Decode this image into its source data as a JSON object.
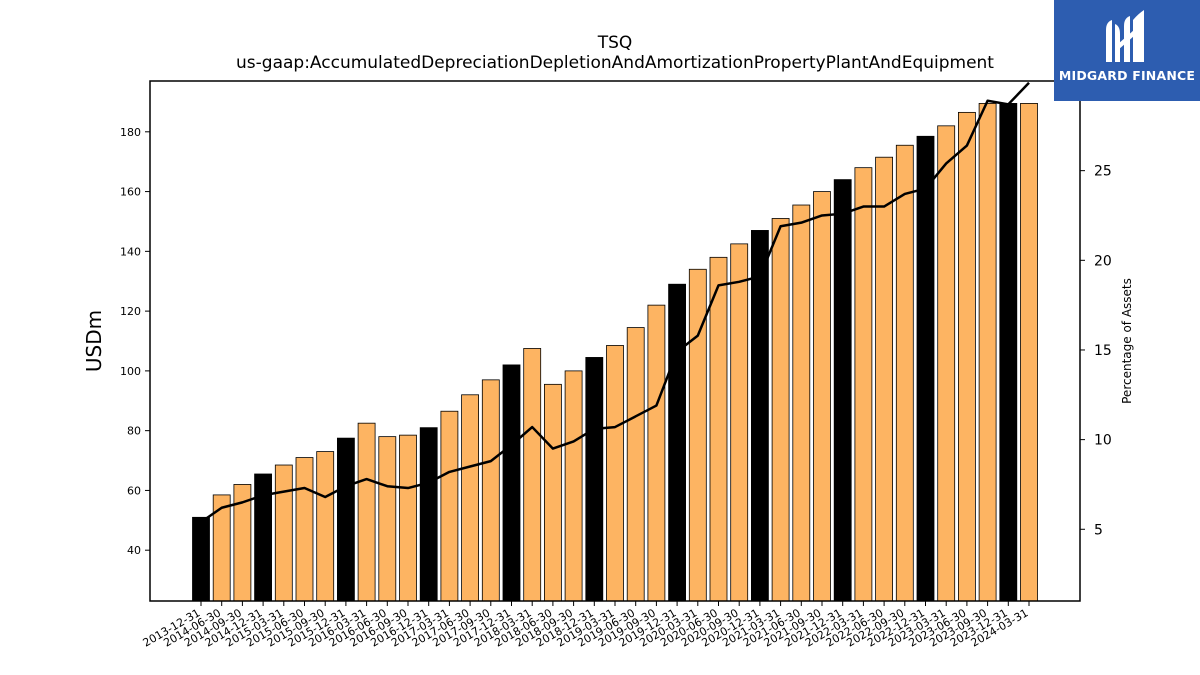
{
  "logo": {
    "text": "MIDGARD FINANCE",
    "bg_color": "#2d5db0"
  },
  "chart_data": {
    "type": "bar",
    "title": "TSQ",
    "subtitle": "us-gaap:AccumulatedDepreciationDepletionAndAmortizationPropertyPlantAndEquipment",
    "ylabel": "USDm",
    "y2label": "Percentage of Assets",
    "ylim": [
      23,
      197
    ],
    "y2lim": [
      1,
      30
    ],
    "yticks": [
      40,
      60,
      80,
      100,
      120,
      140,
      160,
      180
    ],
    "y2ticks": [
      5,
      10,
      15,
      20,
      25,
      30
    ],
    "categories": [
      "2013-12-31",
      "2014-06-30",
      "2014-09-30",
      "2014-12-31",
      "2015-03-31",
      "2015-06-30",
      "2015-09-30",
      "2015-12-31",
      "2016-03-31",
      "2016-06-30",
      "2016-09-30",
      "2016-12-31",
      "2017-03-31",
      "2017-06-30",
      "2017-09-30",
      "2017-12-31",
      "2018-03-31",
      "2018-06-30",
      "2018-09-30",
      "2018-12-31",
      "2019-03-31",
      "2019-06-30",
      "2019-09-30",
      "2019-12-31",
      "2020-03-31",
      "2020-06-30",
      "2020-09-30",
      "2020-12-31",
      "2021-03-31",
      "2021-06-30",
      "2021-09-30",
      "2021-12-31",
      "2022-03-31",
      "2022-06-30",
      "2022-09-30",
      "2022-12-31",
      "2023-03-31",
      "2023-06-30",
      "2023-09-30",
      "2023-12-31",
      "2024-03-31"
    ],
    "series": [
      {
        "type": "bar",
        "values": [
          51,
          58.5,
          62,
          65.5,
          68.5,
          71,
          73,
          77.5,
          82.5,
          78,
          78.5,
          81,
          86.5,
          92,
          97,
          102,
          107.5,
          95.5,
          100,
          104.5,
          108.5,
          114.5,
          122,
          129,
          134,
          138,
          142.5,
          147,
          151,
          155.5,
          160,
          164,
          168,
          171.5,
          175.5,
          178.5,
          182,
          186.5,
          189.5,
          189.5,
          189.5
        ],
        "bar_colors": [
          "#000000",
          "#fdb462",
          "#fdb462",
          "#000000",
          "#fdb462",
          "#fdb462",
          "#fdb462",
          "#000000",
          "#fdb462",
          "#fdb462",
          "#fdb462",
          "#000000",
          "#fdb462",
          "#fdb462",
          "#fdb462",
          "#000000",
          "#fdb462",
          "#fdb462",
          "#fdb462",
          "#000000",
          "#fdb462",
          "#fdb462",
          "#fdb462",
          "#000000",
          "#fdb462",
          "#fdb462",
          "#fdb462",
          "#000000",
          "#fdb462",
          "#fdb462",
          "#fdb462",
          "#000000",
          "#fdb462",
          "#fdb462",
          "#fdb462",
          "#000000",
          "#fdb462",
          "#fdb462",
          "#fdb462",
          "#000000",
          "#fdb462"
        ]
      },
      {
        "type": "line",
        "axis": "right",
        "color": "#000000",
        "values": [
          5.4,
          6.2,
          6.5,
          6.9,
          7.1,
          7.3,
          6.8,
          7.4,
          7.8,
          7.4,
          7.3,
          7.6,
          8.2,
          8.5,
          8.8,
          9.7,
          10.7,
          9.5,
          9.9,
          10.6,
          10.7,
          11.3,
          11.9,
          14.9,
          15.8,
          18.6,
          18.8,
          19.1,
          21.9,
          22.1,
          22.5,
          22.6,
          23.0,
          23.0,
          23.7,
          24.0,
          25.4,
          26.4,
          28.9,
          28.7,
          29.9
        ]
      }
    ],
    "grid": false,
    "legend": "none"
  }
}
